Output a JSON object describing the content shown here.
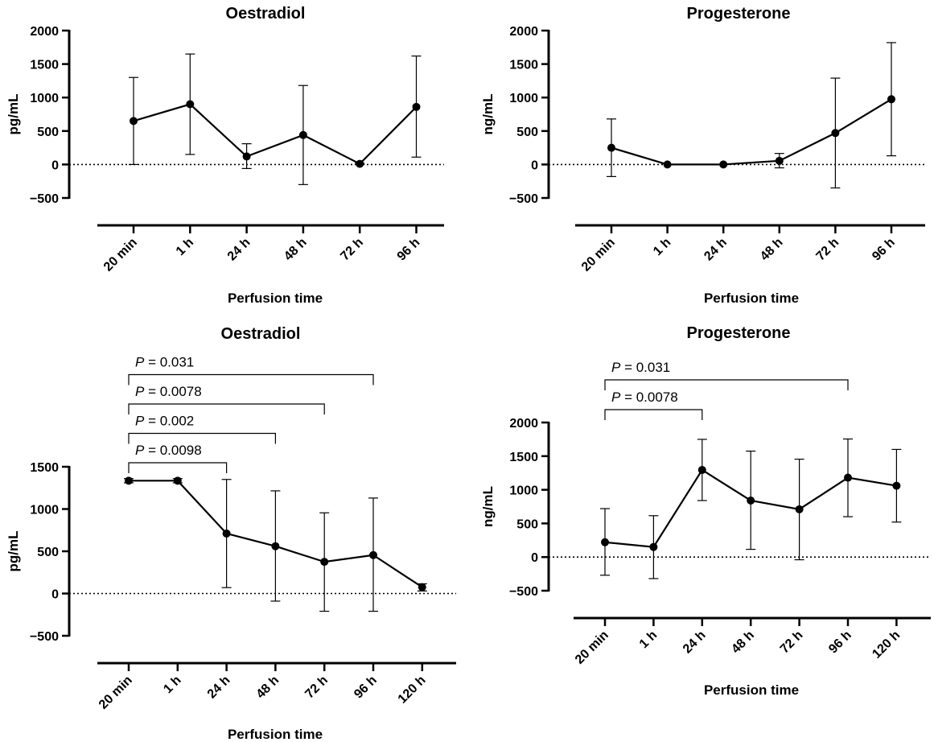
{
  "chart_data": [
    {
      "type": "line",
      "title": "Oestradiol",
      "ylabel": "pg/mL",
      "xlabel": "Perfusion time",
      "categories": [
        "20 min",
        "1 h",
        "24 h",
        "48 h",
        "72 h",
        "96 h"
      ],
      "ylim": [
        -500,
        2000
      ],
      "yticks": [
        2000,
        1500,
        1000,
        500,
        0,
        -500
      ],
      "ytick_labels": [
        "2000",
        "1500",
        "1000",
        "500",
        "0",
        "−500"
      ],
      "zero_line": "dotted",
      "series": [
        {
          "values": [
            650,
            900,
            120,
            440,
            10,
            860
          ],
          "err_low": [
            0,
            150,
            -60,
            -300,
            0,
            110
          ],
          "err_high": [
            1300,
            1650,
            310,
            1180,
            20,
            1620
          ]
        }
      ],
      "annotations": []
    },
    {
      "type": "line",
      "title": "Progesterone",
      "ylabel": "ng/mL",
      "xlabel": "Perfusion time",
      "categories": [
        "20 min",
        "1 h",
        "24 h",
        "48 h",
        "72 h",
        "96 h"
      ],
      "ylim": [
        -500,
        2000
      ],
      "yticks": [
        2000,
        1500,
        1000,
        500,
        0,
        -500
      ],
      "ytick_labels": [
        "2000",
        "1500",
        "1000",
        "500",
        "0",
        "−500"
      ],
      "zero_line": "dotted",
      "series": [
        {
          "values": [
            250,
            0,
            0,
            55,
            470,
            975
          ],
          "err_low": [
            -180,
            0,
            0,
            -50,
            -350,
            130
          ],
          "err_high": [
            680,
            0,
            0,
            165,
            1290,
            1820
          ]
        }
      ],
      "annotations": []
    },
    {
      "type": "line",
      "title": "Oestradiol",
      "ylabel": "pg/mL",
      "xlabel": "Perfusion time",
      "categories": [
        "20 min",
        "1 h",
        "24 h",
        "48 h",
        "72 h",
        "96 h",
        "120 h"
      ],
      "ylim": [
        -500,
        1500
      ],
      "yticks": [
        1500,
        1000,
        500,
        0,
        -500
      ],
      "ytick_labels": [
        "1500",
        "1000",
        "500",
        "0",
        "−500"
      ],
      "zero_line": "dotted",
      "series": [
        {
          "values": [
            1335,
            1335,
            710,
            560,
            375,
            455,
            75
          ],
          "err_low": [
            1310,
            1310,
            70,
            -90,
            -210,
            -210,
            30
          ],
          "err_high": [
            1360,
            1360,
            1350,
            1215,
            955,
            1130,
            115
          ]
        }
      ],
      "annotations": [
        {
          "label": "P",
          "text": " = 0.0098",
          "from": 0,
          "to": 2,
          "level": 0
        },
        {
          "label": "P",
          "text": " = 0.002",
          "from": 0,
          "to": 3,
          "level": 1
        },
        {
          "label": "P",
          "text": " = 0.0078",
          "from": 0,
          "to": 4,
          "level": 2
        },
        {
          "label": "P",
          "text": " = 0.031",
          "from": 0,
          "to": 5,
          "level": 3
        }
      ]
    },
    {
      "type": "line",
      "title": "Progesterone",
      "ylabel": "ng/mL",
      "xlabel": "Perfusion time",
      "categories": [
        "20 min",
        "1 h",
        "24 h",
        "48 h",
        "72 h",
        "96 h",
        "120 h"
      ],
      "ylim": [
        -500,
        2000
      ],
      "yticks": [
        2000,
        1500,
        1000,
        500,
        0,
        -500
      ],
      "ytick_labels": [
        "2000",
        "1500",
        "1000",
        "500",
        "0",
        "−500"
      ],
      "zero_line": "dotted",
      "series": [
        {
          "values": [
            220,
            150,
            1295,
            840,
            710,
            1180,
            1060
          ],
          "err_low": [
            -270,
            -320,
            840,
            115,
            -40,
            600,
            520
          ],
          "err_high": [
            720,
            615,
            1750,
            1575,
            1455,
            1755,
            1600
          ]
        }
      ],
      "annotations": [
        {
          "label": "P",
          "text": " = 0.0078",
          "from": 0,
          "to": 2,
          "level": 0
        },
        {
          "label": "P",
          "text": " = 0.031",
          "from": 0,
          "to": 5,
          "level": 1
        }
      ]
    }
  ]
}
